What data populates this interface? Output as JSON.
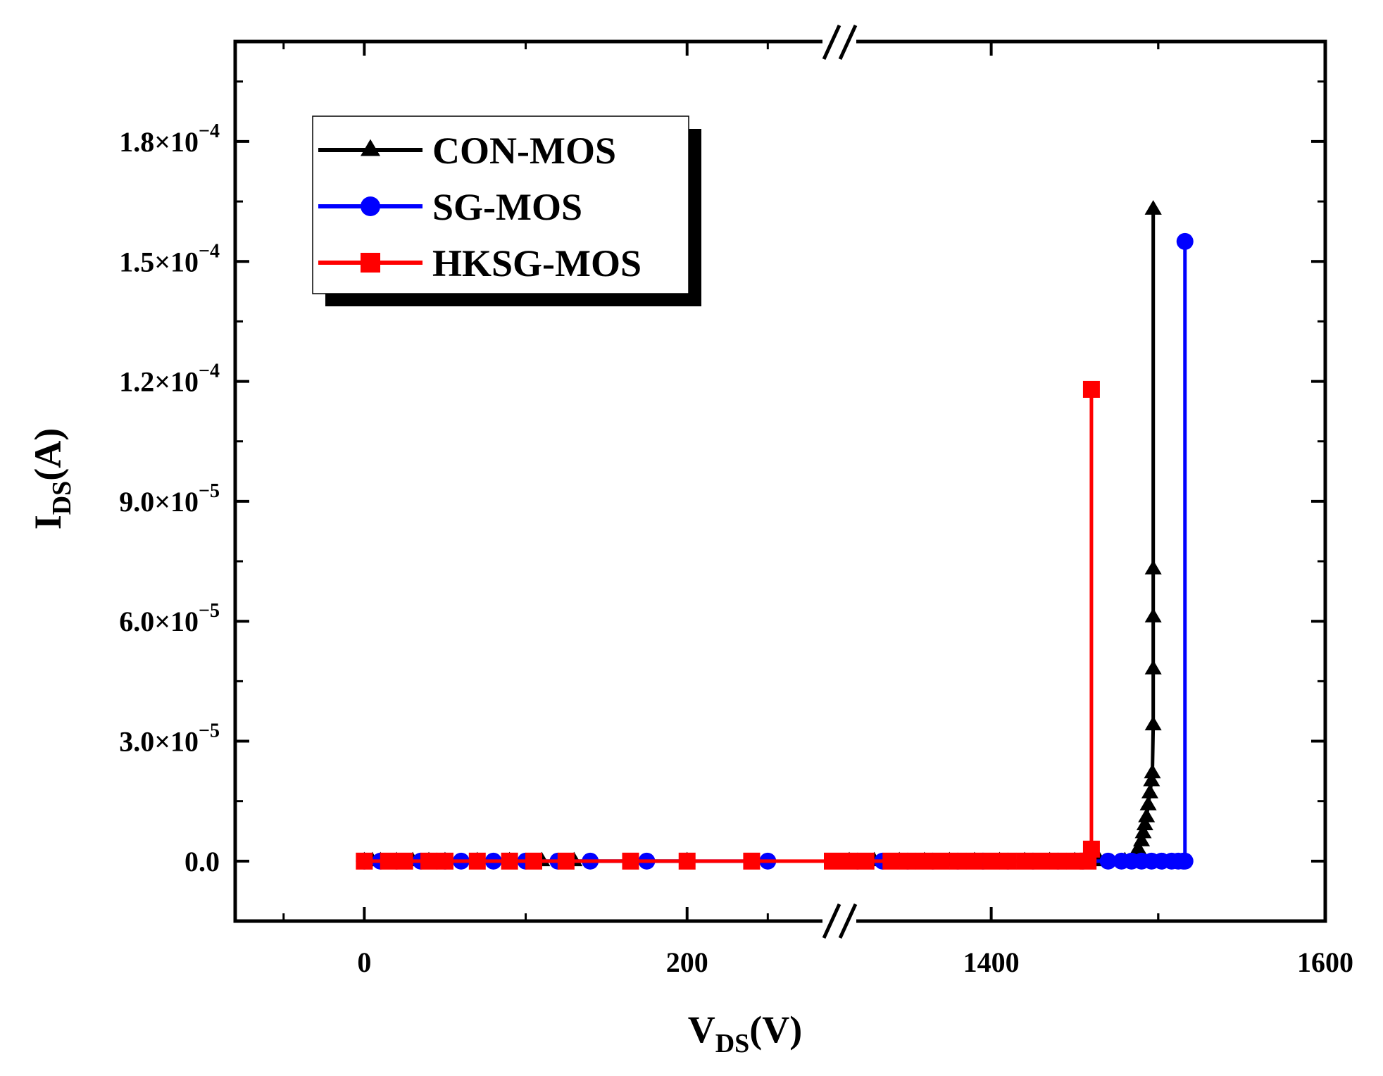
{
  "chart_data": {
    "type": "line",
    "title": "",
    "xlabel": {
      "main": "V",
      "sub": "DS",
      "unit": "(V)"
    },
    "ylabel": {
      "main": "I",
      "sub": "DS",
      "unit": "(A)"
    },
    "x_break": {
      "segment1": [
        -80,
        290
      ],
      "segment2": [
        1315,
        1600
      ]
    },
    "x_ticks": [
      {
        "value": 0,
        "label": "0"
      },
      {
        "value": 200,
        "label": "200"
      },
      {
        "value": 1400,
        "label": "1400"
      },
      {
        "value": 1600,
        "label": "1600"
      }
    ],
    "ylim": [
      -1.5e-05,
      0.000205
    ],
    "y_ticks": [
      {
        "value": 0,
        "mantissa": "0.0",
        "exp": ""
      },
      {
        "value": 3e-05,
        "mantissa": "3.0×10",
        "exp": "−5"
      },
      {
        "value": 6e-05,
        "mantissa": "6.0×10",
        "exp": "−5"
      },
      {
        "value": 9e-05,
        "mantissa": "9.0×10",
        "exp": "−5"
      },
      {
        "value": 0.00012,
        "mantissa": "1.2×10",
        "exp": "−4"
      },
      {
        "value": 0.00015,
        "mantissa": "1.5×10",
        "exp": "−4"
      },
      {
        "value": 0.00018,
        "mantissa": "1.8×10",
        "exp": "−4"
      }
    ],
    "series": [
      {
        "name": "CON-MOS",
        "color": "#000000",
        "marker": "triangle",
        "x": [
          0,
          5,
          10,
          20,
          30,
          40,
          50,
          70,
          90,
          110,
          130,
          200,
          1315,
          1330,
          1345,
          1360,
          1375,
          1390,
          1405,
          1420,
          1435,
          1450,
          1465,
          1480,
          1486,
          1488,
          1490,
          1491,
          1492,
          1493,
          1494,
          1495,
          1496,
          1496.5,
          1497,
          1497,
          1497,
          1497,
          1497,
          1497
        ],
        "y": [
          0,
          0,
          0,
          0,
          0,
          0,
          0,
          0,
          0,
          0,
          0,
          0,
          0,
          0,
          0,
          0,
          0,
          0,
          0,
          0,
          0,
          0,
          0,
          0,
          1e-06,
          3e-06,
          5e-06,
          7e-06,
          9e-06,
          1.1e-05,
          1.4e-05,
          1.7e-05,
          2e-05,
          2.2e-05,
          3.4e-05,
          4.8e-05,
          6.1e-05,
          7.3e-05,
          0.000163,
          0.000163
        ]
      },
      {
        "name": "SG-MOS",
        "color": "#0000ff",
        "marker": "circle",
        "x": [
          0,
          10,
          20,
          35,
          50,
          60,
          80,
          100,
          120,
          140,
          175,
          250,
          1320,
          1335,
          1350,
          1365,
          1380,
          1395,
          1410,
          1425,
          1440,
          1455,
          1470,
          1478,
          1484,
          1490,
          1496,
          1502,
          1508,
          1512,
          1515,
          1516,
          1516
        ],
        "y": [
          0,
          0,
          0,
          0,
          0,
          0,
          0,
          0,
          0,
          0,
          0,
          0,
          0,
          0,
          0,
          0,
          0,
          0,
          0,
          0,
          0,
          0,
          0,
          0,
          0,
          0,
          0,
          0,
          0,
          0,
          0,
          0,
          0.000155
        ]
      },
      {
        "name": "HKSG-MOS",
        "color": "#ff0000",
        "marker": "square",
        "x": [
          0,
          15,
          25,
          40,
          50,
          70,
          90,
          105,
          125,
          165,
          200,
          240,
          290,
          1315,
          1325,
          1340,
          1350,
          1360,
          1370,
          1380,
          1390,
          1400,
          1410,
          1420,
          1430,
          1440,
          1450,
          1458,
          1460,
          1460
        ],
        "y": [
          0,
          0,
          0,
          0,
          0,
          0,
          0,
          0,
          0,
          0,
          0,
          0,
          0,
          0,
          0,
          0,
          0,
          0,
          0,
          0,
          0,
          0,
          0,
          0,
          0,
          0,
          0,
          0,
          3e-06,
          0.000118
        ]
      }
    ],
    "legend": {
      "placement": "top-left",
      "entries": [
        "CON-MOS",
        "SG-MOS",
        "HKSG-MOS"
      ]
    }
  }
}
